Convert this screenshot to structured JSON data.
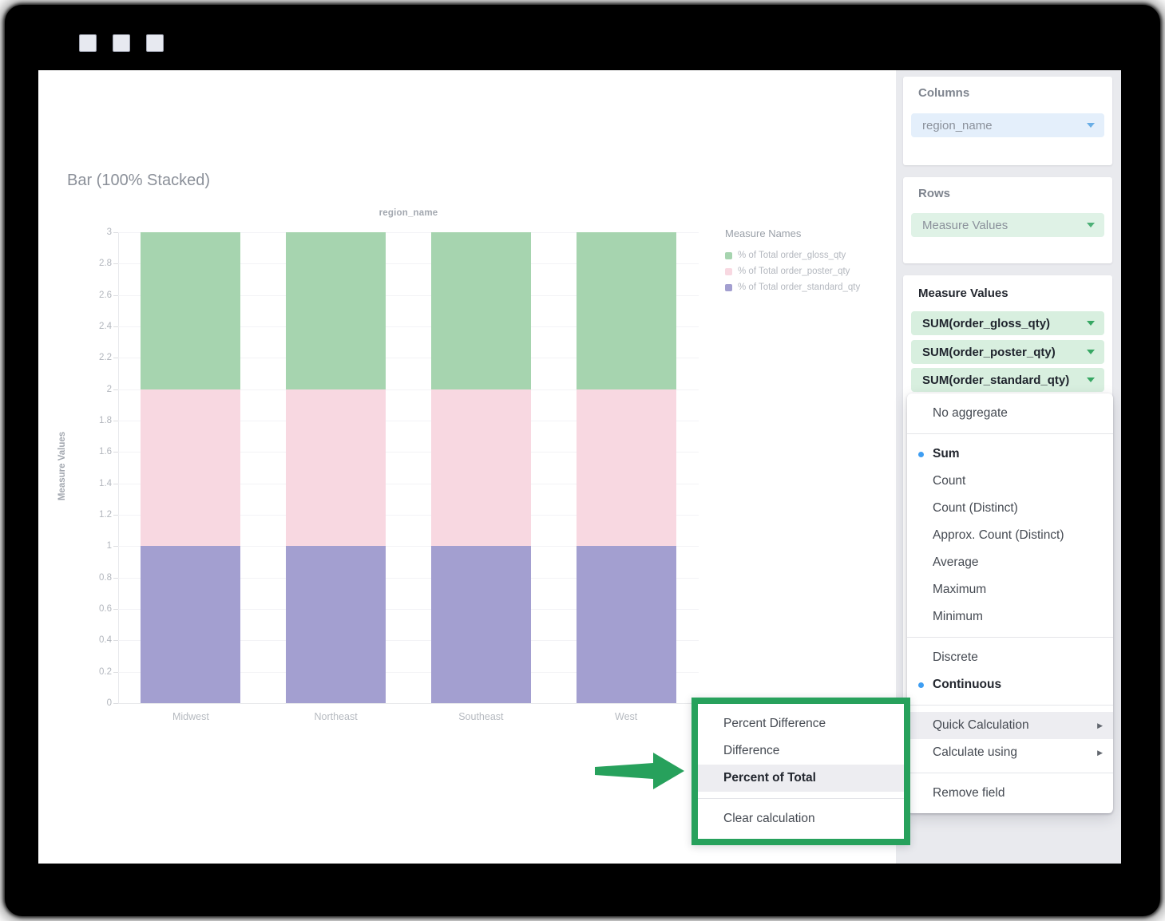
{
  "window": {
    "controls": [
      {
        "name": "window-button-1"
      },
      {
        "name": "window-button-2"
      },
      {
        "name": "window-button-3"
      }
    ]
  },
  "chart": {
    "card_title": "Bar (100% Stacked)",
    "axis_top_label": "region_name",
    "y_axis_label": "Measure Values",
    "legend_title": "Measure Names",
    "legend": [
      {
        "label": "% of Total order_gloss_qty",
        "color": "#a6d4af"
      },
      {
        "label": "% of Total order_poster_qty",
        "color": "#f8d8e1"
      },
      {
        "label": "% of Total order_standard_qty",
        "color": "#a39fd0"
      }
    ],
    "chart_data": {
      "type": "bar",
      "stacked": true,
      "title": "Bar (100% Stacked)",
      "xlabel": "region_name",
      "ylabel": "Measure Values",
      "categories": [
        "Midwest",
        "Northeast",
        "Southeast",
        "West"
      ],
      "series": [
        {
          "name": "% of Total order_standard_qty",
          "color": "#a39fd0",
          "values": [
            1,
            1,
            1,
            1
          ]
        },
        {
          "name": "% of Total order_poster_qty",
          "color": "#f8d8e1",
          "values": [
            1,
            1,
            1,
            1
          ]
        },
        {
          "name": "% of Total order_gloss_qty",
          "color": "#a6d4af",
          "values": [
            1,
            1,
            1,
            1
          ]
        }
      ],
      "ylim": [
        0,
        3
      ],
      "ytick_step": 0.2,
      "grid": true,
      "legend_position": "right"
    }
  },
  "sidebar": {
    "columns": {
      "title": "Columns",
      "pill": {
        "label": "region_name"
      }
    },
    "rows": {
      "title": "Rows",
      "pill": {
        "label": "Measure Values"
      }
    },
    "measures": {
      "title": "Measure Values",
      "pills": [
        {
          "label": "SUM(order_gloss_qty)"
        },
        {
          "label": "SUM(order_poster_qty)"
        },
        {
          "label": "SUM(order_standard_qty)"
        }
      ]
    }
  },
  "aggregate_menu": {
    "sections": [
      {
        "items": [
          {
            "label": "No aggregate"
          }
        ]
      },
      {
        "items": [
          {
            "label": "Sum",
            "selected": true
          },
          {
            "label": "Count"
          },
          {
            "label": "Count (Distinct)"
          },
          {
            "label": "Approx. Count (Distinct)"
          },
          {
            "label": "Average"
          },
          {
            "label": "Maximum"
          },
          {
            "label": "Minimum"
          }
        ]
      },
      {
        "items": [
          {
            "label": "Discrete"
          },
          {
            "label": "Continuous",
            "selected": true
          }
        ]
      },
      {
        "items": [
          {
            "label": "Quick Calculation",
            "submenu": true,
            "highlighted": true
          },
          {
            "label": "Calculate using",
            "submenu": true
          }
        ]
      },
      {
        "items": [
          {
            "label": "Remove field"
          }
        ]
      }
    ]
  },
  "quick_calc_menu": {
    "items_top": [
      "Percent Difference",
      "Difference",
      "Percent of Total"
    ],
    "items_bottom": [
      "Clear calculation"
    ],
    "highlighted": "Percent of Total"
  },
  "colors": {
    "annotation_green": "#27a15c",
    "selected_dot_blue": "#3f9ef2",
    "bar_green": "#a6d4af",
    "bar_pink": "#f8d8e1",
    "bar_purple": "#a39fd0",
    "pill_blue_bg": "#e4effb",
    "pill_green_bg": "#dff2e6",
    "pill_sum_bg": "#d8efdf",
    "sidebar_bg": "#e9eaee",
    "menu_highlight_bg": "#ededf1"
  }
}
